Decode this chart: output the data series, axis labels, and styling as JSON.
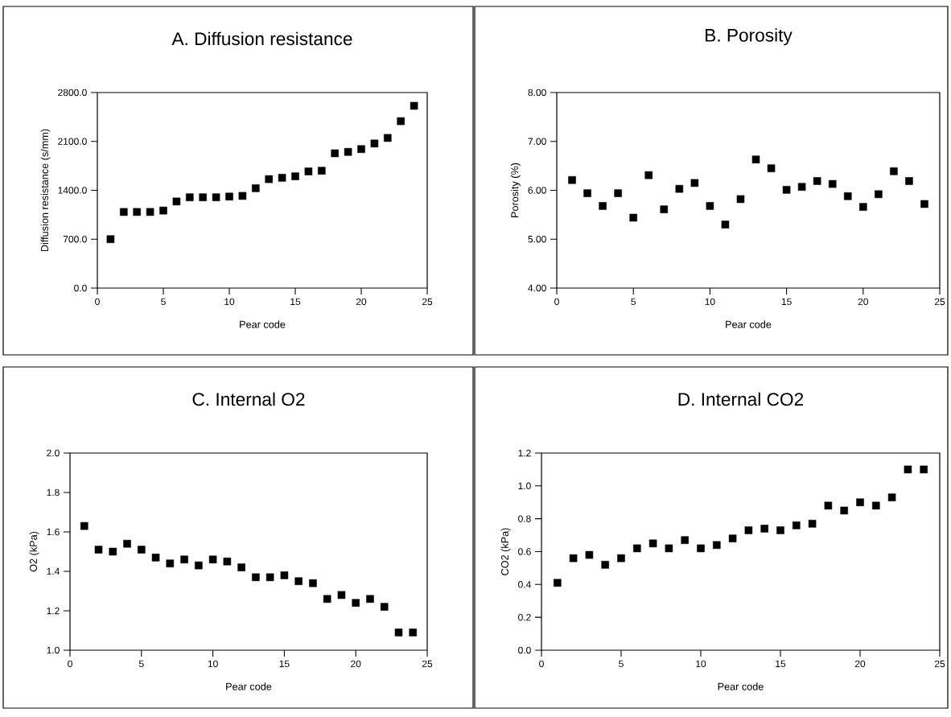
{
  "chart_data": [
    {
      "type": "scatter",
      "title": "A. Diffusion resistance",
      "xlabel": "Pear code",
      "ylabel": "Diffusion resistance (s/mm)",
      "marker": "square",
      "color": "#000000",
      "x": [
        1,
        2,
        3,
        4,
        5,
        6,
        7,
        8,
        9,
        10,
        11,
        12,
        13,
        14,
        15,
        16,
        17,
        18,
        19,
        20,
        21,
        22,
        23,
        24
      ],
      "values": [
        700,
        1090,
        1090,
        1090,
        1110,
        1240,
        1300,
        1300,
        1300,
        1310,
        1320,
        1430,
        1560,
        1580,
        1600,
        1670,
        1680,
        1930,
        1950,
        1990,
        2070,
        2150,
        2390,
        2610
      ],
      "xlim": [
        0,
        25
      ],
      "xticks": [
        0,
        5,
        10,
        15,
        20,
        25
      ],
      "ylim": [
        0,
        2800
      ],
      "yticks": [
        {
          "value": 0,
          "label": "0.0"
        },
        {
          "value": 700,
          "label": "700.0"
        },
        {
          "value": 1400,
          "label": "1400.0"
        },
        {
          "value": 2100,
          "label": "2100.0"
        },
        {
          "value": 2800,
          "label": "2800.0"
        }
      ]
    },
    {
      "type": "scatter",
      "title": "B. Porosity",
      "xlabel": "Pear code",
      "ylabel": "Porosity (%)",
      "marker": "square",
      "color": "#000000",
      "x": [
        1,
        2,
        3,
        4,
        5,
        6,
        7,
        8,
        9,
        10,
        11,
        12,
        13,
        14,
        15,
        16,
        17,
        18,
        19,
        20,
        21,
        22,
        23,
        24
      ],
      "values": [
        6.21,
        5.94,
        5.68,
        5.94,
        5.44,
        6.31,
        5.61,
        6.03,
        6.15,
        5.68,
        5.3,
        5.82,
        6.63,
        6.45,
        6.01,
        6.07,
        6.19,
        6.13,
        5.88,
        5.66,
        5.92,
        6.39,
        6.19,
        5.72
      ],
      "xlim": [
        0,
        25
      ],
      "xticks": [
        0,
        5,
        10,
        15,
        20,
        25
      ],
      "ylim": [
        4,
        8
      ],
      "yticks": [
        {
          "value": 4,
          "label": "4.00"
        },
        {
          "value": 5,
          "label": "5.00"
        },
        {
          "value": 6,
          "label": "6.00"
        },
        {
          "value": 7,
          "label": "7.00"
        },
        {
          "value": 8,
          "label": "8.00"
        }
      ]
    },
    {
      "type": "scatter",
      "title": "C. Internal O2",
      "xlabel": "Pear code",
      "ylabel": "O2 (kPa)",
      "marker": "square",
      "color": "#000000",
      "x": [
        1,
        2,
        3,
        4,
        5,
        6,
        7,
        8,
        9,
        10,
        11,
        12,
        13,
        14,
        15,
        16,
        17,
        18,
        19,
        20,
        21,
        22,
        23,
        24
      ],
      "values": [
        1.63,
        1.51,
        1.5,
        1.54,
        1.51,
        1.47,
        1.44,
        1.46,
        1.43,
        1.46,
        1.45,
        1.42,
        1.37,
        1.37,
        1.38,
        1.35,
        1.34,
        1.26,
        1.28,
        1.24,
        1.26,
        1.22,
        1.09,
        1.09
      ],
      "xlim": [
        0,
        25
      ],
      "xticks": [
        0,
        5,
        10,
        15,
        20,
        25
      ],
      "ylim": [
        1,
        2
      ],
      "yticks": [
        {
          "value": 1,
          "label": "1.0"
        },
        {
          "value": 1.2,
          "label": "1.2"
        },
        {
          "value": 1.4,
          "label": "1.4"
        },
        {
          "value": 1.6,
          "label": "1.6"
        },
        {
          "value": 1.8,
          "label": "1.8"
        },
        {
          "value": 2,
          "label": "2.0"
        }
      ]
    },
    {
      "type": "scatter",
      "title": "D. Internal CO2",
      "xlabel": "Pear code",
      "ylabel": "CO2 (kPa)",
      "marker": "square",
      "color": "#000000",
      "x": [
        1,
        2,
        3,
        4,
        5,
        6,
        7,
        8,
        9,
        10,
        11,
        12,
        13,
        14,
        15,
        16,
        17,
        18,
        19,
        20,
        21,
        22,
        23,
        24
      ],
      "values": [
        0.41,
        0.56,
        0.58,
        0.52,
        0.56,
        0.62,
        0.65,
        0.62,
        0.67,
        0.62,
        0.64,
        0.68,
        0.73,
        0.74,
        0.73,
        0.76,
        0.77,
        0.88,
        0.85,
        0.9,
        0.88,
        0.93,
        1.1,
        1.1
      ],
      "xlim": [
        0,
        25
      ],
      "xticks": [
        0,
        5,
        10,
        15,
        20,
        25
      ],
      "ylim": [
        0,
        1.2
      ],
      "yticks": [
        {
          "value": 0,
          "label": "0.0"
        },
        {
          "value": 0.2,
          "label": "0.2"
        },
        {
          "value": 0.4,
          "label": "0.4"
        },
        {
          "value": 0.6,
          "label": "0.6"
        },
        {
          "value": 0.8,
          "label": "0.8"
        },
        {
          "value": 1.0,
          "label": "1.0"
        },
        {
          "value": 1.2,
          "label": "1.2"
        }
      ]
    }
  ]
}
